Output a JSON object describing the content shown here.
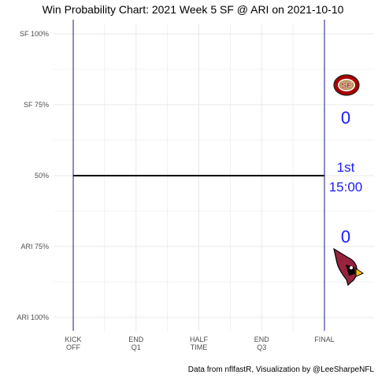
{
  "chart_data": {
    "type": "line",
    "title": "Win Probability Chart: 2021 Week 5 SF @ ARI on 2021-10-10",
    "x_ticks": [
      "KICK\nOFF",
      "END\nQ1",
      "HALF\nTIME",
      "END\nQ3",
      "FINAL"
    ],
    "y_ticks": [
      {
        "value": 0,
        "label": "ARI 100%"
      },
      {
        "value": 0.25,
        "label": "ARI 75%"
      },
      {
        "value": 0.5,
        "label": "50%"
      },
      {
        "value": 0.75,
        "label": "SF 75%"
      },
      {
        "value": 1,
        "label": "SF 100%"
      }
    ],
    "xlim": [
      0,
      4
    ],
    "ylim": [
      0,
      1
    ],
    "grid": true,
    "series": [
      {
        "values": [
          {
            "x": 0,
            "y": 0.5
          },
          {
            "x": 4,
            "y": 0.5
          }
        ]
      }
    ]
  },
  "scoreboard": {
    "home_team_score": "0",
    "away_team_score": "0",
    "quarter": "1st",
    "clock": "15:00"
  },
  "logos": {
    "top": "sf-49ers-logo",
    "bottom": "arizona-cardinals-logo"
  },
  "caption": "Data from nflfastR, Visualization by @LeeSharpeNFL",
  "colors": {
    "wp_line": "#000000",
    "boundary": "#1a1a8c",
    "score_text": "#1a1aff",
    "grid": "#e8e8e8",
    "sf_red": "#aa0000",
    "sf_gold": "#b3995d",
    "ari_red": "#97233f"
  }
}
